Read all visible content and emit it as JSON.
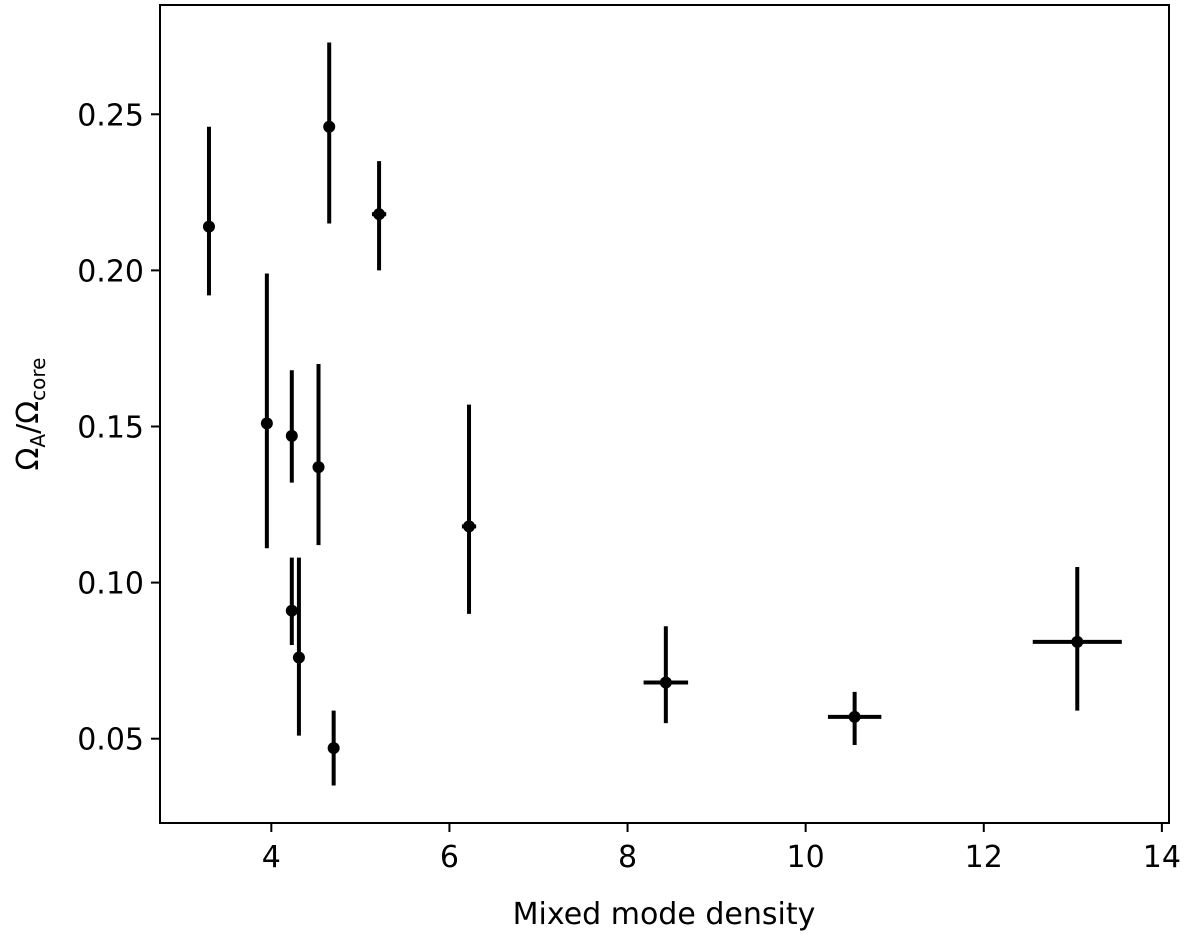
{
  "chart_data": {
    "type": "scatter",
    "title": "",
    "xlabel": "Mixed mode density",
    "ylabel": {
      "base": "Ω",
      "sub1": "A",
      "sep": "/Ω",
      "sub2": "core"
    },
    "xlim": [
      2.75,
      14.08
    ],
    "ylim": [
      0.023,
      0.285
    ],
    "xticks": [
      4,
      6,
      8,
      10,
      12,
      14
    ],
    "xtick_labels": [
      "4",
      "6",
      "8",
      "10",
      "12",
      "14"
    ],
    "yticks": [
      0.05,
      0.1,
      0.15,
      0.2,
      0.25
    ],
    "ytick_labels": [
      "0.05",
      "0.10",
      "0.15",
      "0.20",
      "0.25"
    ],
    "grid": false,
    "marker_color": "#000000",
    "points": [
      {
        "x": 3.3,
        "y": 0.214,
        "xerr": 0.0,
        "ylo": 0.192,
        "yhi": 0.246
      },
      {
        "x": 3.95,
        "y": 0.151,
        "xerr": 0.0,
        "ylo": 0.111,
        "yhi": 0.199
      },
      {
        "x": 4.23,
        "y": 0.147,
        "xerr": 0.0,
        "ylo": 0.132,
        "yhi": 0.168
      },
      {
        "x": 4.23,
        "y": 0.091,
        "xerr": 0.0,
        "ylo": 0.08,
        "yhi": 0.108
      },
      {
        "x": 4.31,
        "y": 0.076,
        "xerr": 0.0,
        "ylo": 0.051,
        "yhi": 0.108
      },
      {
        "x": 4.53,
        "y": 0.137,
        "xerr": 0.06,
        "ylo": 0.112,
        "yhi": 0.17
      },
      {
        "x": 4.65,
        "y": 0.246,
        "xerr": 0.0,
        "ylo": 0.215,
        "yhi": 0.273
      },
      {
        "x": 4.7,
        "y": 0.047,
        "xerr": 0.0,
        "ylo": 0.035,
        "yhi": 0.059
      },
      {
        "x": 5.21,
        "y": 0.218,
        "xerr": 0.08,
        "ylo": 0.2,
        "yhi": 0.235
      },
      {
        "x": 6.22,
        "y": 0.118,
        "xerr": 0.08,
        "ylo": 0.09,
        "yhi": 0.157
      },
      {
        "x": 8.43,
        "y": 0.068,
        "xerr": 0.25,
        "ylo": 0.055,
        "yhi": 0.086
      },
      {
        "x": 10.55,
        "y": 0.057,
        "xerr": 0.3,
        "ylo": 0.048,
        "yhi": 0.065
      },
      {
        "x": 13.05,
        "y": 0.081,
        "xerr": 0.5,
        "ylo": 0.059,
        "yhi": 0.105
      }
    ]
  }
}
